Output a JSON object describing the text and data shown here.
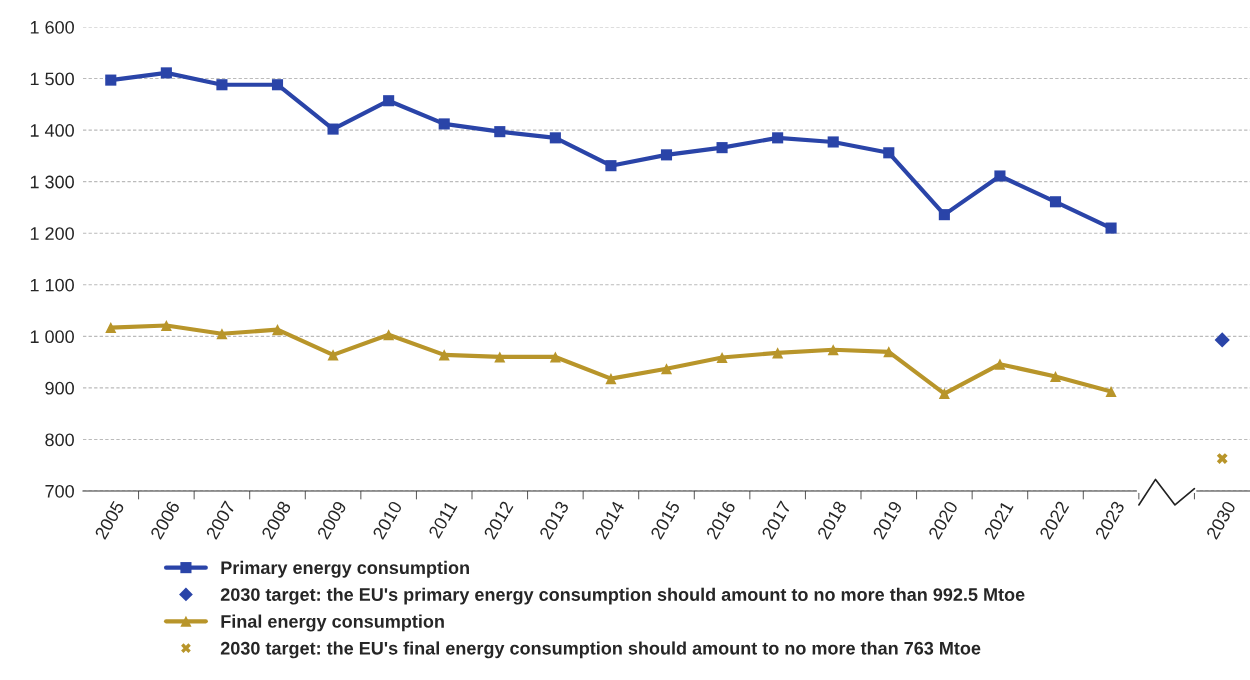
{
  "chart_data": {
    "type": "line",
    "categories": [
      "2005",
      "2006",
      "2007",
      "2008",
      "2009",
      "2010",
      "2011",
      "2012",
      "2013",
      "2014",
      "2015",
      "2016",
      "2017",
      "2018",
      "2019",
      "2020",
      "2021",
      "2022",
      "2023",
      null,
      "2030"
    ],
    "series": [
      {
        "name": "Primary energy consumption",
        "marker": "square",
        "color": "#2a44a8",
        "values": [
          1497,
          1511,
          1488,
          1488,
          1402,
          1457,
          1412,
          1397,
          1385,
          1331,
          1352,
          1366,
          1385,
          1377,
          1356,
          1236,
          1311,
          1261,
          1210,
          null,
          null
        ]
      },
      {
        "name": "2030 target: the EU's primary energy consumption should amount to no more than 992.5 Mtoe",
        "type": "scatter",
        "marker": "diamond",
        "color": "#2a44a8",
        "values": [
          null,
          null,
          null,
          null,
          null,
          null,
          null,
          null,
          null,
          null,
          null,
          null,
          null,
          null,
          null,
          null,
          null,
          null,
          null,
          null,
          993
        ]
      },
      {
        "name": "Final energy consumption",
        "marker": "triangle",
        "color": "#b8952a",
        "values": [
          1017,
          1021,
          1005,
          1013,
          964,
          1003,
          964,
          960,
          960,
          918,
          937,
          959,
          968,
          974,
          970,
          889,
          946,
          922,
          893,
          null,
          null
        ]
      },
      {
        "name": "2030 target: the EU's final energy consumption should amount to no more than 763 Mtoe",
        "type": "scatter",
        "marker": "cross",
        "color": "#b8952a",
        "values": [
          null,
          null,
          null,
          null,
          null,
          null,
          null,
          null,
          null,
          null,
          null,
          null,
          null,
          null,
          null,
          null,
          null,
          null,
          null,
          null,
          763
        ]
      }
    ],
    "ylim": [
      700,
      1600
    ],
    "yticks": [
      {
        "value": 700,
        "label": "700"
      },
      {
        "value": 800,
        "label": "800"
      },
      {
        "value": 900,
        "label": "900"
      },
      {
        "value": 1000,
        "label": "1 000"
      },
      {
        "value": 1100,
        "label": "1 100"
      },
      {
        "value": 1200,
        "label": "1 200"
      },
      {
        "value": 1300,
        "label": "1 300"
      },
      {
        "value": 1400,
        "label": "1 400"
      },
      {
        "value": 1500,
        "label": "1 500"
      },
      {
        "value": 1600,
        "label": "1 600"
      }
    ],
    "grid": "y",
    "legend": "bottom"
  }
}
